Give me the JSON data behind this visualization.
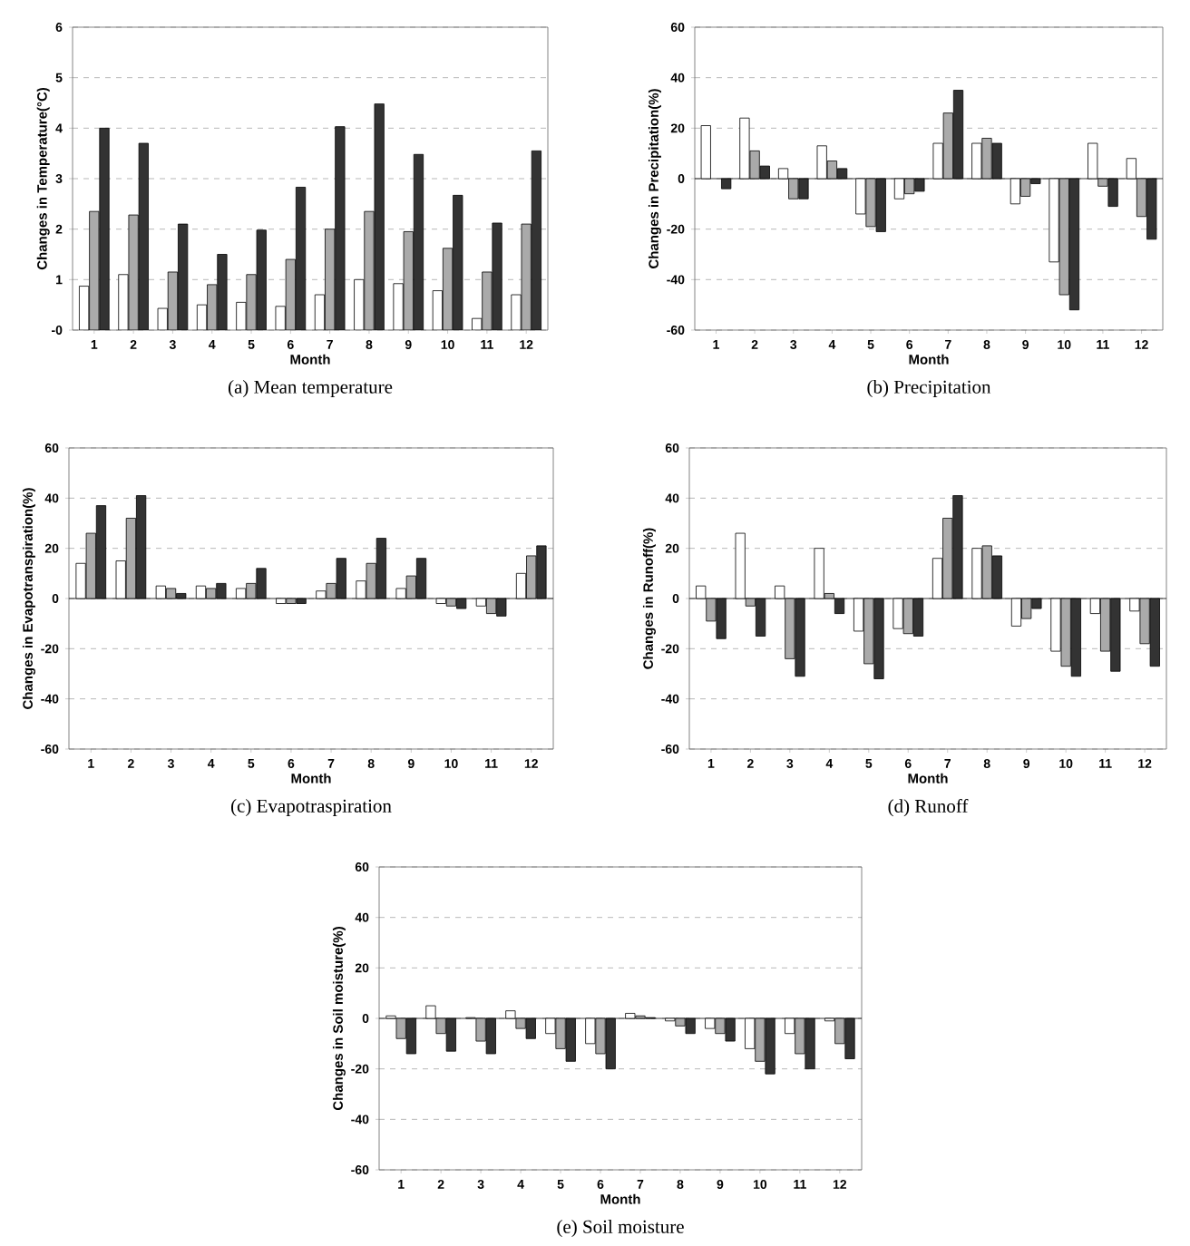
{
  "chart_data": [
    {
      "type": "bar",
      "title": "(a)  Mean  temperature",
      "xlabel": "Month",
      "ylabel": "Changes in Temperature(°C)",
      "categories": [
        "1",
        "2",
        "3",
        "4",
        "5",
        "6",
        "7",
        "8",
        "9",
        "10",
        "11",
        "12"
      ],
      "series": [
        {
          "color": "#ffffff",
          "values": [
            0.87,
            1.1,
            0.43,
            0.5,
            0.55,
            0.47,
            0.7,
            1.0,
            0.92,
            0.78,
            0.23,
            0.7
          ]
        },
        {
          "color": "#aaaaaa",
          "values": [
            2.35,
            2.28,
            1.15,
            0.9,
            1.1,
            1.4,
            2.0,
            2.35,
            1.95,
            1.62,
            1.15,
            2.1
          ]
        },
        {
          "color": "#333333",
          "values": [
            4.0,
            3.7,
            2.1,
            1.5,
            1.98,
            2.83,
            4.03,
            4.48,
            3.48,
            2.67,
            2.12,
            3.55
          ]
        }
      ],
      "ylim": [
        0,
        6
      ],
      "yticks": [
        {
          "value": 0,
          "label": "-0"
        },
        1,
        2,
        3,
        4,
        5,
        6
      ],
      "grid": "y"
    },
    {
      "type": "bar",
      "title": "(b)  Precipitation",
      "xlabel": "Month",
      "ylabel": "Changes in Precipitation(%)",
      "categories": [
        "1",
        "2",
        "3",
        "4",
        "5",
        "6",
        "7",
        "8",
        "9",
        "10",
        "11",
        "12"
      ],
      "series": [
        {
          "color": "#ffffff",
          "values": [
            21,
            24,
            4,
            13,
            -14,
            -8,
            14,
            14,
            -10,
            -33,
            14,
            8
          ]
        },
        {
          "color": "#aaaaaa",
          "values": [
            null,
            11,
            -8,
            7,
            -19,
            -6,
            26,
            16,
            -7,
            -46,
            -3,
            -15
          ]
        },
        {
          "color": "#333333",
          "values": [
            -4,
            5,
            -8,
            4,
            -21,
            -5,
            35,
            14,
            -2,
            -52,
            -11,
            -24
          ]
        }
      ],
      "ylim": [
        -60,
        60
      ],
      "yticks": [
        -60,
        -40,
        -20,
        0,
        20,
        40,
        60
      ],
      "grid": "y"
    },
    {
      "type": "bar",
      "title": "(c)  Evapotraspiration",
      "xlabel": "Month",
      "ylabel": "Changes in Evapotranspiration(%)",
      "categories": [
        "1",
        "2",
        "3",
        "4",
        "5",
        "6",
        "7",
        "8",
        "9",
        "10",
        "11",
        "12"
      ],
      "series": [
        {
          "color": "#ffffff",
          "values": [
            14,
            15,
            5,
            5,
            4,
            -2,
            3,
            7,
            4,
            -2,
            -3,
            10
          ]
        },
        {
          "color": "#aaaaaa",
          "values": [
            26,
            32,
            4,
            4,
            6,
            -2,
            6,
            14,
            9,
            -3,
            -6,
            17
          ]
        },
        {
          "color": "#333333",
          "values": [
            37,
            41,
            2,
            6,
            12,
            -2,
            16,
            24,
            16,
            -4,
            -7,
            21
          ]
        }
      ],
      "ylim": [
        -60,
        60
      ],
      "yticks": [
        -60,
        -40,
        -20,
        0,
        20,
        40,
        60
      ],
      "grid": "y"
    },
    {
      "type": "bar",
      "title": "(d)  Runoff",
      "xlabel": "Month",
      "ylabel": "Changes in Runoff(%)",
      "categories": [
        "1",
        "2",
        "3",
        "4",
        "5",
        "6",
        "7",
        "8",
        "9",
        "10",
        "11",
        "12"
      ],
      "series": [
        {
          "color": "#ffffff",
          "values": [
            5,
            26,
            5,
            20,
            -13,
            -12,
            16,
            20,
            -11,
            -21,
            -6,
            -5
          ]
        },
        {
          "color": "#aaaaaa",
          "values": [
            -9,
            -3,
            -24,
            2,
            -26,
            -14,
            32,
            21,
            -8,
            -27,
            -21,
            -18
          ]
        },
        {
          "color": "#333333",
          "values": [
            -16,
            -15,
            -31,
            -6,
            -32,
            -15,
            41,
            17,
            -4,
            -31,
            -29,
            -27
          ]
        }
      ],
      "ylim": [
        -60,
        60
      ],
      "yticks": [
        -60,
        -40,
        -20,
        0,
        20,
        40,
        60
      ],
      "grid": "y"
    },
    {
      "type": "bar",
      "title": "(e)  Soil moisture",
      "xlabel": "Month",
      "ylabel": "Changes in Soil moisture(%)",
      "categories": [
        "1",
        "2",
        "3",
        "4",
        "5",
        "6",
        "7",
        "8",
        "9",
        "10",
        "11",
        "12"
      ],
      "series": [
        {
          "color": "#ffffff",
          "values": [
            1,
            5,
            0.3,
            3,
            -6,
            -10,
            2,
            -1,
            -4,
            -12,
            -6,
            -1
          ]
        },
        {
          "color": "#aaaaaa",
          "values": [
            -8,
            -6,
            -9,
            -4,
            -12,
            -14,
            1,
            -3,
            -6,
            -17,
            -14,
            -10
          ]
        },
        {
          "color": "#333333",
          "values": [
            -14,
            -13,
            -14,
            -8,
            -17,
            -20,
            0.3,
            -6,
            -9,
            -22,
            -20,
            -16
          ]
        }
      ],
      "ylim": [
        -60,
        60
      ],
      "yticks": [
        -60,
        -40,
        -20,
        0,
        20,
        40,
        60
      ],
      "grid": "y"
    }
  ]
}
